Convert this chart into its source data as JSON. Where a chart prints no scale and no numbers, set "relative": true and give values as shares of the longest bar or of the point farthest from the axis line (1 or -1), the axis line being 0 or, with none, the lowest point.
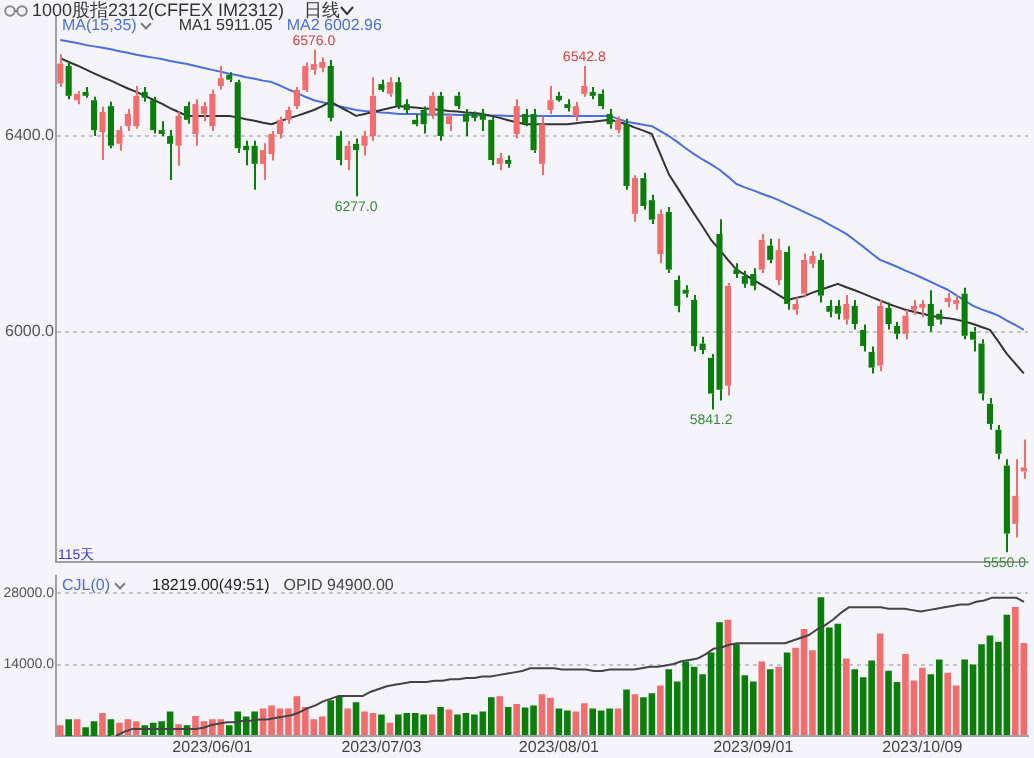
{
  "chart_data": [
    {
      "type": "candlestick",
      "title": "1000股指2312(CFFEX IM2312)",
      "subtitle": "日线",
      "legend_title": "MA(15,35)",
      "legend": "top left",
      "grid": "y",
      "tick_labels": "y",
      "categories": [
        null,
        null,
        null,
        null,
        null,
        null,
        null,
        null,
        null,
        null,
        null,
        null,
        null,
        null,
        null,
        null,
        null,
        null,
        null,
        null,
        null,
        null,
        null,
        null,
        null,
        null,
        null,
        null,
        null,
        null,
        null,
        null,
        null,
        null,
        null,
        null,
        null,
        null,
        null,
        null,
        null,
        null,
        null,
        null,
        null,
        null,
        null,
        null,
        null,
        null,
        null,
        null,
        null,
        null,
        null,
        null,
        null,
        null,
        null,
        null,
        null,
        null,
        null,
        null,
        null,
        null,
        null,
        null,
        null,
        null,
        null,
        null,
        null,
        null,
        null,
        null,
        null,
        null,
        null,
        null,
        null,
        null,
        null,
        null,
        null,
        null,
        null,
        null,
        null,
        null,
        null,
        null,
        null,
        null,
        null,
        null,
        null,
        null,
        null,
        null,
        null,
        null,
        null,
        null,
        null,
        null,
        null,
        null,
        null,
        null,
        null,
        null,
        null,
        null,
        null
      ],
      "ohlc": [
        [
          6507,
          6567,
          6500,
          6548
        ],
        [
          6543,
          6552,
          6475,
          6482
        ],
        [
          6473,
          6492,
          6465,
          6486
        ],
        [
          6490,
          6500,
          6478,
          6482
        ],
        [
          6473,
          6480,
          6400,
          6412
        ],
        [
          6408,
          6460,
          6351,
          6449
        ],
        [
          6461,
          6470,
          6375,
          6380
        ],
        [
          6384,
          6420,
          6370,
          6412
        ],
        [
          6420,
          6455,
          6410,
          6445
        ],
        [
          6420,
          6502,
          6415,
          6482
        ],
        [
          6490,
          6500,
          6470,
          6478
        ],
        [
          6473,
          6480,
          6405,
          6412
        ],
        [
          6412,
          6430,
          6400,
          6404
        ],
        [
          6400,
          6412,
          6310,
          6384
        ],
        [
          6380,
          6450,
          6339,
          6441
        ],
        [
          6461,
          6470,
          6425,
          6433
        ],
        [
          6404,
          6475,
          6380,
          6465
        ],
        [
          6445,
          6470,
          6430,
          6461
        ],
        [
          6420,
          6495,
          6410,
          6486
        ],
        [
          6502,
          6543,
          6495,
          6518
        ],
        [
          6525,
          6530,
          6510,
          6515
        ],
        [
          6510,
          6515,
          6365,
          6375
        ],
        [
          6380,
          6390,
          6340,
          6371
        ],
        [
          6380,
          6390,
          6290,
          6343
        ],
        [
          6343,
          6385,
          6310,
          6371
        ],
        [
          6363,
          6410,
          6350,
          6404
        ],
        [
          6404,
          6440,
          6395,
          6433
        ],
        [
          6433,
          6460,
          6425,
          6453
        ],
        [
          6461,
          6500,
          6455,
          6494
        ],
        [
          6494,
          6550,
          6490,
          6543
        ],
        [
          6535,
          6576,
          6525,
          6547
        ],
        [
          6539,
          6560,
          6530,
          6551
        ],
        [
          6543,
          6555,
          6430,
          6437
        ],
        [
          6400,
          6410,
          6340,
          6351
        ],
        [
          6351,
          6390,
          6330,
          6380
        ],
        [
          6384,
          6395,
          6277,
          6371
        ],
        [
          6380,
          6410,
          6360,
          6400
        ],
        [
          6400,
          6520,
          6390,
          6482
        ],
        [
          6506,
          6515,
          6490,
          6494
        ],
        [
          6486,
          6520,
          6480,
          6510
        ],
        [
          6510,
          6520,
          6455,
          6461
        ],
        [
          6465,
          6475,
          6445,
          6453
        ],
        [
          6433,
          6445,
          6420,
          6424
        ],
        [
          6453,
          6460,
          6405,
          6424
        ],
        [
          6441,
          6490,
          6435,
          6482
        ],
        [
          6482,
          6490,
          6390,
          6400
        ],
        [
          6424,
          6445,
          6410,
          6441
        ],
        [
          6482,
          6490,
          6455,
          6461
        ],
        [
          6445,
          6455,
          6400,
          6429
        ],
        [
          6445,
          6450,
          6430,
          6437
        ],
        [
          6445,
          6455,
          6410,
          6433
        ],
        [
          6433,
          6440,
          6340,
          6351
        ],
        [
          6343,
          6365,
          6330,
          6355
        ],
        [
          6351,
          6360,
          6335,
          6343
        ],
        [
          6404,
          6475,
          6395,
          6461
        ],
        [
          6445,
          6455,
          6420,
          6424
        ],
        [
          6445,
          6455,
          6365,
          6371
        ],
        [
          6343,
          6440,
          6320,
          6424
        ],
        [
          6453,
          6502,
          6445,
          6473
        ],
        [
          6482,
          6490,
          6470,
          6473
        ],
        [
          6465,
          6475,
          6450,
          6457
        ],
        [
          6441,
          6470,
          6430,
          6461
        ],
        [
          6486,
          6542.8,
          6480,
          6502
        ],
        [
          6490,
          6500,
          6475,
          6482
        ],
        [
          6486,
          6495,
          6455,
          6461
        ],
        [
          6445,
          6455,
          6415,
          6424
        ],
        [
          6412,
          6440,
          6405,
          6433
        ],
        [
          6424,
          6435,
          6290,
          6298
        ],
        [
          6241,
          6320,
          6225,
          6314
        ],
        [
          6314,
          6325,
          6250,
          6257
        ],
        [
          6269,
          6280,
          6220,
          6229
        ],
        [
          6159,
          6250,
          6140,
          6241
        ],
        [
          6245,
          6255,
          6120,
          6127
        ],
        [
          6106,
          6115,
          6040,
          6053
        ],
        [
          6086,
          6095,
          6070,
          6078
        ],
        [
          6065,
          6075,
          5960,
          5971
        ],
        [
          5976,
          5990,
          5955,
          5963
        ],
        [
          5947,
          5955,
          5841.2,
          5874
        ],
        [
          6200,
          6230,
          5860,
          5882
        ],
        [
          5890,
          6100,
          5870,
          6094
        ],
        [
          6127,
          6140,
          6110,
          6118
        ],
        [
          6114,
          6125,
          6090,
          6098
        ],
        [
          6118,
          6130,
          6085,
          6094
        ],
        [
          6127,
          6200,
          6120,
          6188
        ],
        [
          6176,
          6190,
          6140,
          6147
        ],
        [
          6106,
          6190,
          6095,
          6167
        ],
        [
          6163,
          6175,
          6045,
          6057
        ],
        [
          6045,
          6070,
          6035,
          6057
        ],
        [
          6078,
          6160,
          6070,
          6147
        ],
        [
          6139,
          6165,
          6130,
          6155
        ],
        [
          6147,
          6160,
          6060,
          6074
        ],
        [
          6053,
          6065,
          6030,
          6041
        ],
        [
          6053,
          6065,
          6025,
          6037
        ],
        [
          6025,
          6075,
          6015,
          6057
        ],
        [
          6053,
          6065,
          6005,
          6016
        ],
        [
          6004,
          6015,
          5960,
          5971
        ],
        [
          5959,
          5970,
          5915,
          5927
        ],
        [
          5931,
          6065,
          5920,
          6053
        ],
        [
          6049,
          6060,
          6005,
          6016
        ],
        [
          6012,
          6020,
          5985,
          5996
        ],
        [
          5996,
          6045,
          5985,
          6033
        ],
        [
          6045,
          6065,
          6035,
          6053
        ],
        [
          6049,
          6065,
          6030,
          6057
        ],
        [
          6057,
          6085,
          6000,
          6012
        ],
        [
          6037,
          6045,
          6015,
          6025
        ],
        [
          6061,
          6080,
          6050,
          6069
        ],
        [
          6057,
          6075,
          6045,
          6065
        ],
        [
          6078,
          6090,
          5985,
          5992
        ],
        [
          6000,
          6010,
          5960,
          5984
        ],
        [
          5976,
          5985,
          5860,
          5874
        ],
        [
          5853,
          5865,
          5800,
          5812
        ],
        [
          5800,
          5810,
          5740,
          5751
        ],
        [
          5727,
          5740,
          5550,
          5588
        ],
        [
          5608,
          5740,
          5580,
          5665
        ],
        [
          5715,
          5780,
          5700,
          5723
        ]
      ],
      "colors": [
        "#f26d6d",
        "#0a7d0a",
        "#f26d6d",
        "#0a7d0a",
        "#0a7d0a",
        "#f26d6d",
        "#0a7d0a",
        "#f26d6d",
        "#f26d6d",
        "#f26d6d",
        "#0a7d0a",
        "#0a7d0a",
        "#0a7d0a",
        "#0a7d0a",
        "#f26d6d",
        "#0a7d0a",
        "#f26d6d",
        "#f26d6d",
        "#f26d6d",
        "#f26d6d",
        "#0a7d0a",
        "#0a7d0a",
        "#0a7d0a",
        "#0a7d0a",
        "#f26d6d",
        "#f26d6d",
        "#f26d6d",
        "#f26d6d",
        "#f26d6d",
        "#f26d6d",
        "#f26d6d",
        "#f26d6d",
        "#0a7d0a",
        "#0a7d0a",
        "#f26d6d",
        "#0a7d0a",
        "#f26d6d",
        "#f26d6d",
        "#0a7d0a",
        "#f26d6d",
        "#0a7d0a",
        "#0a7d0a",
        "#0a7d0a",
        "#0a7d0a",
        "#f26d6d",
        "#0a7d0a",
        "#f26d6d",
        "#0a7d0a",
        "#0a7d0a",
        "#0a7d0a",
        "#0a7d0a",
        "#0a7d0a",
        "#f26d6d",
        "#0a7d0a",
        "#f26d6d",
        "#0a7d0a",
        "#0a7d0a",
        "#f26d6d",
        "#f26d6d",
        "#0a7d0a",
        "#0a7d0a",
        "#f26d6d",
        "#f26d6d",
        "#0a7d0a",
        "#0a7d0a",
        "#0a7d0a",
        "#f26d6d",
        "#0a7d0a",
        "#f26d6d",
        "#0a7d0a",
        "#0a7d0a",
        "#f26d6d",
        "#0a7d0a",
        "#0a7d0a",
        "#0a7d0a",
        "#0a7d0a",
        "#0a7d0a",
        "#0a7d0a",
        "#0a7d0a",
        "#f26d6d",
        "#0a7d0a",
        "#0a7d0a",
        "#0a7d0a",
        "#f26d6d",
        "#0a7d0a",
        "#f26d6d",
        "#0a7d0a",
        "#f26d6d",
        "#f26d6d",
        "#f26d6d",
        "#0a7d0a",
        "#0a7d0a",
        "#0a7d0a",
        "#f26d6d",
        "#0a7d0a",
        "#0a7d0a",
        "#0a7d0a",
        "#f26d6d",
        "#0a7d0a",
        "#0a7d0a",
        "#f26d6d",
        "#f26d6d",
        "#f26d6d",
        "#0a7d0a",
        "#0a7d0a",
        "#f26d6d",
        "#f26d6d",
        "#0a7d0a",
        "#0a7d0a",
        "#0a7d0a",
        "#0a7d0a",
        "#0a7d0a",
        "#0a7d0a",
        "#f26d6d",
        "#f26d6d"
      ],
      "series": [
        {
          "name": "MA1 5911.05",
          "type": "line",
          "color": "#333333",
          "values": [
            6559,
            6551,
            6544,
            6536,
            6528,
            6520,
            6513,
            6505,
            6497,
            6490,
            6482,
            6474,
            6466,
            6457,
            6449,
            6441,
            6441,
            6441,
            6441,
            6441,
            6441,
            6438,
            6434,
            6431,
            6427,
            6424,
            6430,
            6436,
            6441,
            6447,
            6453,
            6461,
            6470,
            6460,
            6451,
            6441,
            6445,
            6449,
            6453,
            6457,
            6461,
            6459,
            6458,
            6456,
            6455,
            6453,
            6451,
            6450,
            6448,
            6447,
            6445,
            6441,
            6437,
            6432,
            6428,
            6424,
            6424,
            6424,
            6424,
            6424,
            6424,
            6426,
            6428,
            6429,
            6431,
            6433,
            6429,
            6424,
            6417,
            6411,
            6404,
            6363,
            6322,
            6295,
            6268,
            6241,
            6215,
            6188,
            6168,
            6147,
            6127,
            6117,
            6106,
            6096,
            6086,
            6075,
            6065,
            6069,
            6073,
            6080,
            6086,
            6092,
            6098,
            6091,
            6085,
            6078,
            6071,
            6064,
            6057,
            6051,
            6045,
            6041,
            6037,
            6033,
            6030,
            6028,
            6025,
            6021,
            6016,
            6010,
            6004,
            5980,
            5955,
            5935,
            5915
          ]
        },
        {
          "name": "MA2 6002.96",
          "type": "line",
          "color": "#4a6fe0",
          "values": [
            6596,
            6593,
            6590,
            6586,
            6583,
            6580,
            6577,
            6573,
            6570,
            6566,
            6563,
            6560,
            6557,
            6553,
            6550,
            6547,
            6543,
            6539,
            6535,
            6531,
            6527,
            6524,
            6520,
            6517,
            6513,
            6510,
            6503,
            6495,
            6488,
            6480,
            6473,
            6469,
            6465,
            6461,
            6457,
            6453,
            6451,
            6450,
            6448,
            6447,
            6445,
            6445,
            6445,
            6444,
            6444,
            6444,
            6444,
            6443,
            6443,
            6443,
            6442,
            6442,
            6442,
            6441,
            6441,
            6441,
            6441,
            6441,
            6441,
            6441,
            6441,
            6441,
            6441,
            6441,
            6441,
            6441,
            6435,
            6429,
            6426,
            6423,
            6420,
            6410,
            6400,
            6388,
            6375,
            6363,
            6352,
            6342,
            6331,
            6317,
            6302,
            6295,
            6289,
            6282,
            6276,
            6269,
            6261,
            6253,
            6245,
            6237,
            6229,
            6219,
            6210,
            6200,
            6187,
            6174,
            6160,
            6147,
            6140,
            6133,
            6125,
            6118,
            6110,
            6102,
            6094,
            6086,
            6075,
            6064,
            6053,
            6046,
            6040,
            6033,
            6023,
            6014,
            6004
          ]
        }
      ],
      "ylim": [
        5530,
        6645
      ],
      "yticks": [
        {
          "value": 6000,
          "label": "6000.0"
        },
        {
          "value": 6400,
          "label": "6400.0"
        }
      ],
      "annotations": [
        {
          "text": "6576.0",
          "y": 6576
        },
        {
          "text": "6277.0",
          "y": 6277
        },
        {
          "text": "6542.8",
          "y": 6542.8
        },
        {
          "text": "5841.2",
          "y": 5841.2
        },
        {
          "text": "5550.0",
          "y": 5550
        },
        "115天"
      ]
    },
    {
      "type": "bar",
      "legend_title": "CJL(0)",
      "grid": "y",
      "annotations": [
        "18219.00(49:51)"
      ],
      "categories": [
        null,
        null,
        null,
        null,
        null,
        null,
        null,
        null,
        null,
        null,
        null,
        null,
        null,
        null,
        null,
        null,
        null,
        null,
        "2023/06/01",
        null,
        null,
        null,
        null,
        null,
        null,
        null,
        null,
        null,
        null,
        null,
        null,
        null,
        null,
        null,
        null,
        null,
        null,
        null,
        "2023/07/03",
        null,
        null,
        null,
        null,
        null,
        null,
        null,
        null,
        null,
        null,
        null,
        null,
        null,
        null,
        null,
        null,
        null,
        null,
        null,
        null,
        "2023/08/01",
        null,
        null,
        null,
        null,
        null,
        null,
        null,
        null,
        null,
        null,
        null,
        null,
        null,
        null,
        null,
        null,
        null,
        null,
        null,
        null,
        null,
        null,
        "2023/09/01",
        null,
        null,
        null,
        null,
        null,
        null,
        null,
        null,
        null,
        null,
        null,
        null,
        null,
        null,
        null,
        null,
        null,
        null,
        null,
        "2023/10/09",
        null,
        null,
        null,
        null,
        null,
        null,
        null,
        null,
        null,
        null,
        null,
        null
      ],
      "series": [
        {
          "colors": [
            "#f26d6d",
            "#0a7d0a",
            "#f26d6d",
            "#0a7d0a",
            "#0a7d0a",
            "#f26d6d",
            "#0a7d0a",
            "#f26d6d",
            "#f26d6d",
            "#f26d6d",
            "#0a7d0a",
            "#0a7d0a",
            "#0a7d0a",
            "#0a7d0a",
            "#f26d6d",
            "#0a7d0a",
            "#f26d6d",
            "#f26d6d",
            "#f26d6d",
            "#f26d6d",
            "#0a7d0a",
            "#0a7d0a",
            "#0a7d0a",
            "#0a7d0a",
            "#f26d6d",
            "#f26d6d",
            "#f26d6d",
            "#f26d6d",
            "#f26d6d",
            "#f26d6d",
            "#f26d6d",
            "#f26d6d",
            "#0a7d0a",
            "#0a7d0a",
            "#f26d6d",
            "#0a7d0a",
            "#f26d6d",
            "#f26d6d",
            "#0a7d0a",
            "#f26d6d",
            "#0a7d0a",
            "#0a7d0a",
            "#0a7d0a",
            "#0a7d0a",
            "#f26d6d",
            "#0a7d0a",
            "#f26d6d",
            "#0a7d0a",
            "#0a7d0a",
            "#0a7d0a",
            "#0a7d0a",
            "#0a7d0a",
            "#f26d6d",
            "#0a7d0a",
            "#f26d6d",
            "#0a7d0a",
            "#0a7d0a",
            "#f26d6d",
            "#f26d6d",
            "#0a7d0a",
            "#0a7d0a",
            "#f26d6d",
            "#f26d6d",
            "#0a7d0a",
            "#0a7d0a",
            "#0a7d0a",
            "#f26d6d",
            "#0a7d0a",
            "#f26d6d",
            "#0a7d0a",
            "#0a7d0a",
            "#f26d6d",
            "#0a7d0a",
            "#0a7d0a",
            "#0a7d0a",
            "#0a7d0a",
            "#0a7d0a",
            "#0a7d0a",
            "#0a7d0a",
            "#f26d6d",
            "#0a7d0a",
            "#0a7d0a",
            "#0a7d0a",
            "#f26d6d",
            "#0a7d0a",
            "#f26d6d",
            "#0a7d0a",
            "#f26d6d",
            "#f26d6d",
            "#f26d6d",
            "#0a7d0a",
            "#0a7d0a",
            "#0a7d0a",
            "#f26d6d",
            "#0a7d0a",
            "#0a7d0a",
            "#0a7d0a",
            "#f26d6d",
            "#0a7d0a",
            "#0a7d0a",
            "#f26d6d",
            "#f26d6d",
            "#f26d6d",
            "#0a7d0a",
            "#0a7d0a",
            "#f26d6d",
            "#f26d6d",
            "#0a7d0a",
            "#0a7d0a",
            "#0a7d0a",
            "#0a7d0a",
            "#0a7d0a",
            "#0a7d0a",
            "#f26d6d",
            "#f26d6d"
          ],
          "values": [
            2100,
            3300,
            3300,
            1700,
            2900,
            4500,
            3300,
            2600,
            3300,
            2900,
            2100,
            2600,
            2900,
            4800,
            2300,
            2100,
            3900,
            2900,
            3300,
            3300,
            2100,
            4800,
            3800,
            4800,
            5400,
            6000,
            5400,
            5400,
            7800,
            5700,
            3300,
            3800,
            7000,
            7800,
            5400,
            6600,
            4800,
            4500,
            4200,
            2600,
            4200,
            4500,
            4500,
            4200,
            4200,
            5700,
            5200,
            4200,
            4500,
            4200,
            4800,
            7600,
            7800,
            5700,
            6300,
            5600,
            6000,
            8200,
            7500,
            5400,
            5000,
            4800,
            6400,
            5400,
            5000,
            5400,
            5400,
            9100,
            8200,
            7600,
            8400,
            9900,
            13100,
            10700,
            14600,
            13600,
            12100,
            16400,
            22300,
            22800,
            18000,
            11900,
            10700,
            14600,
            13100,
            13600,
            16400,
            17300,
            21000,
            16800,
            27200,
            21300,
            22000,
            15200,
            13100,
            11500,
            14800,
            20100,
            12800,
            10600,
            16100,
            10900,
            13400,
            12100,
            15000,
            12400,
            9900,
            15000,
            14000,
            18000,
            19700,
            18500,
            23800,
            25300,
            18219
          ]
        }
      ],
      "ylim": [
        0,
        31300
      ],
      "yticks": [
        {
          "value": 14000,
          "label": "14000.0"
        },
        {
          "value": 28000,
          "label": "28000.0"
        }
      ]
    },
    {
      "type": "line",
      "relative": true,
      "tick_labels": false,
      "legend": "top left",
      "categories": [
        null,
        null,
        null,
        null,
        null,
        null,
        null,
        null,
        null,
        null,
        null,
        null,
        null,
        null,
        null,
        null,
        null,
        null,
        null,
        null,
        null,
        null,
        null,
        null,
        null,
        null,
        null,
        null,
        null,
        null,
        null,
        null,
        null,
        null,
        null,
        null,
        null,
        null,
        null,
        null,
        null,
        null,
        null,
        null,
        null,
        null,
        null,
        null,
        null,
        null,
        null,
        null,
        null,
        null,
        null,
        null,
        null,
        null,
        null,
        null,
        null,
        null,
        null,
        null,
        null,
        null,
        null,
        null,
        null,
        null,
        null,
        null,
        null,
        null,
        null,
        null,
        null,
        null,
        null,
        null,
        null,
        null,
        null,
        null,
        null,
        null,
        null,
        null,
        null,
        null,
        null,
        null,
        null,
        null,
        null,
        null,
        null,
        null,
        null,
        null,
        null,
        null,
        null,
        null,
        null,
        null,
        null,
        null,
        null,
        null,
        null,
        null,
        null,
        null,
        null
      ],
      "series": [
        {
          "name": "OPID 94900.00",
          "color": "#444444",
          "values": [
            0.0,
            0.03,
            0.05,
            0.05,
            0.05,
            0.05,
            0.05,
            0.05,
            0.05,
            0.05,
            0.05,
            0.06,
            0.08,
            0.09,
            0.1,
            0.1,
            0.11,
            0.11,
            0.12,
            0.12,
            0.13,
            0.14,
            0.15,
            0.17,
            0.2,
            0.22,
            0.25,
            0.27,
            0.29,
            0.29,
            0.29,
            0.29,
            0.32,
            0.34,
            0.36,
            0.37,
            0.38,
            0.39,
            0.39,
            0.39,
            0.4,
            0.4,
            0.41,
            0.41,
            0.42,
            0.42,
            0.43,
            0.43,
            0.44,
            0.45,
            0.46,
            0.47,
            0.49,
            0.49,
            0.49,
            0.49,
            0.48,
            0.48,
            0.48,
            0.48,
            0.47,
            0.47,
            0.48,
            0.48,
            0.48,
            0.48,
            0.49,
            0.5,
            0.5,
            0.51,
            0.52,
            0.54,
            0.55,
            0.56,
            0.59,
            0.63,
            0.64,
            0.66,
            0.67,
            0.67,
            0.67,
            0.67,
            0.67,
            0.67,
            0.67,
            0.69,
            0.71,
            0.73,
            0.77,
            0.8,
            0.84,
            0.89,
            0.93,
            0.93,
            0.93,
            0.93,
            0.93,
            0.92,
            0.92,
            0.92,
            0.91,
            0.9,
            0.91,
            0.92,
            0.93,
            0.94,
            0.95,
            0.95,
            0.97,
            0.98,
            1,
            1,
            1,
            1,
            0.97
          ]
        }
      ]
    }
  ]
}
